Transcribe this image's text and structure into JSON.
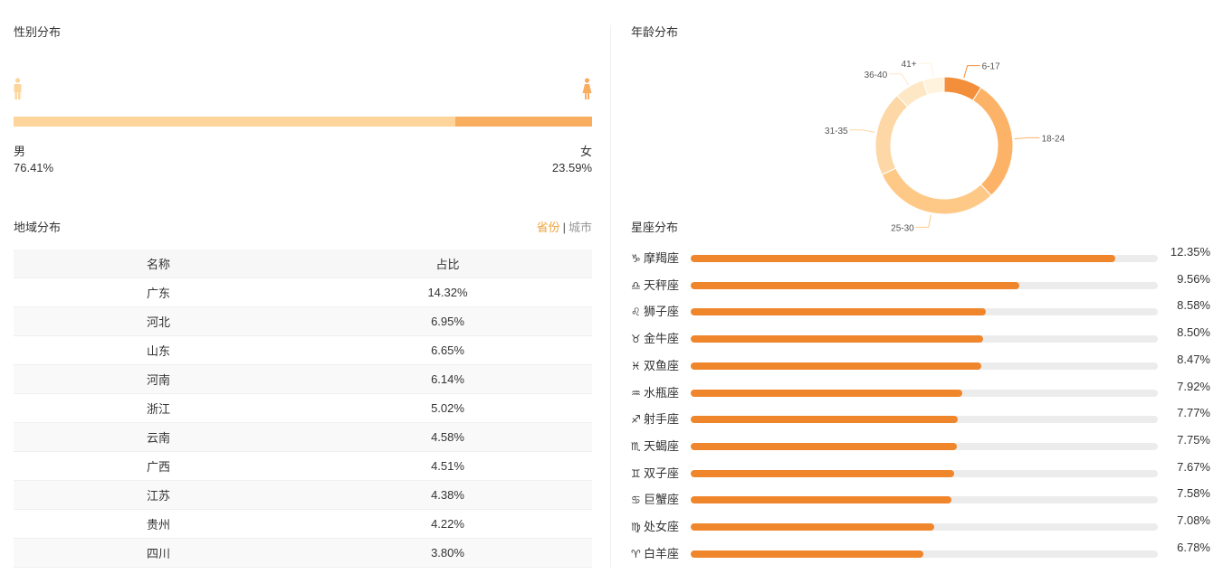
{
  "gender": {
    "title": "性别分布",
    "male_label": "男",
    "male_value": "76.41%",
    "female_label": "女",
    "female_value": "23.59%",
    "male_fraction": 0.7641,
    "male_color": "#fdd49a",
    "female_color": "#f8ad5f",
    "male_icon": "male-person-icon",
    "female_icon": "female-person-icon"
  },
  "region": {
    "title": "地域分布",
    "toggle_active": "省份",
    "toggle_separator": "|",
    "toggle_inactive": "城市",
    "columns": [
      "名称",
      "占比"
    ],
    "rows": [
      {
        "name": "广东",
        "value": "14.32%"
      },
      {
        "name": "河北",
        "value": "6.95%"
      },
      {
        "name": "山东",
        "value": "6.65%"
      },
      {
        "name": "河南",
        "value": "6.14%"
      },
      {
        "name": "浙江",
        "value": "5.02%"
      },
      {
        "name": "云南",
        "value": "4.58%"
      },
      {
        "name": "广西",
        "value": "4.51%"
      },
      {
        "name": "江苏",
        "value": "4.38%"
      },
      {
        "name": "贵州",
        "value": "4.22%"
      },
      {
        "name": "四川",
        "value": "3.80%"
      }
    ]
  },
  "chart_data": [
    {
      "type": "pie",
      "title": "年龄分布",
      "categories": [
        "6-17",
        "18-24",
        "25-30",
        "31-35",
        "36-40",
        "41+"
      ],
      "values": [
        9,
        29,
        30,
        20,
        7,
        5
      ],
      "colors": [
        "#f38f3b",
        "#fdb367",
        "#fec987",
        "#fdd8a6",
        "#fee7c4",
        "#fff3dd"
      ]
    },
    {
      "type": "bar",
      "title": "星座分布",
      "orientation": "horizontal",
      "xlim": [
        0,
        13.6
      ],
      "bar_color": "#f0862c",
      "track_color": "#ececec",
      "categories": [
        "摩羯座",
        "天秤座",
        "狮子座",
        "金牛座",
        "双鱼座",
        "水瓶座",
        "射手座",
        "天蝎座",
        "双子座",
        "巨蟹座",
        "处女座",
        "白羊座"
      ],
      "icons": [
        "♑",
        "♎",
        "♌",
        "♉",
        "♓",
        "♒",
        "♐",
        "♏",
        "♊",
        "♋",
        "♍",
        "♈"
      ],
      "values": [
        12.35,
        9.56,
        8.58,
        8.5,
        8.47,
        7.92,
        7.77,
        7.75,
        7.67,
        7.58,
        7.08,
        6.78
      ],
      "value_labels": [
        "12.35%",
        "9.56%",
        "8.58%",
        "8.50%",
        "8.47%",
        "7.92%",
        "7.77%",
        "7.75%",
        "7.67%",
        "7.58%",
        "7.08%",
        "6.78%"
      ]
    }
  ]
}
